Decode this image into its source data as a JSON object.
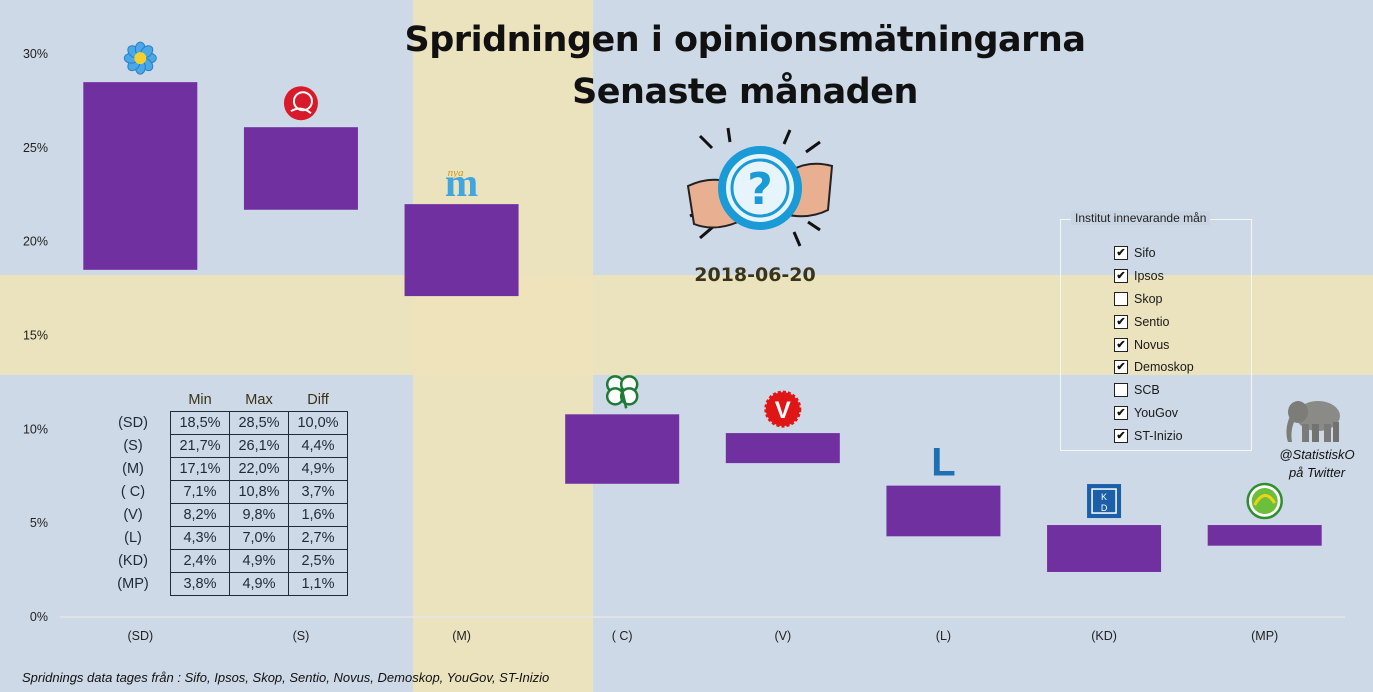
{
  "title_line1": "Spridningen i opinionsmätningarna",
  "title_line2": "Senaste månaden",
  "date": "2018-06-20",
  "colors": {
    "bar": "#7030a0",
    "flag_blue": "#c5d3e3",
    "flag_yellow": "#efe3b2"
  },
  "chart_data": {
    "type": "bar",
    "subtype": "floating-range",
    "categories": [
      "(SD)",
      "(S)",
      "(M)",
      "( C)",
      "(V)",
      "(L)",
      "(KD)",
      "(MP)"
    ],
    "min": [
      18.5,
      21.7,
      17.1,
      7.1,
      8.2,
      4.3,
      2.4,
      3.8
    ],
    "max": [
      28.5,
      26.1,
      22.0,
      10.8,
      9.8,
      7.0,
      4.9,
      4.9
    ],
    "ylim": [
      0,
      30
    ],
    "yticks": [
      "0%",
      "5%",
      "10%",
      "15%",
      "20%",
      "25%",
      "30%"
    ],
    "grid": false
  },
  "table": {
    "headers": [
      "Min",
      "Max",
      "Diff"
    ],
    "rows": [
      {
        "party": "(SD)",
        "min": "18,5%",
        "max": "28,5%",
        "diff": "10,0%"
      },
      {
        "party": "(S)",
        "min": "21,7%",
        "max": "26,1%",
        "diff": "4,4%"
      },
      {
        "party": "(M)",
        "min": "17,1%",
        "max": "22,0%",
        "diff": "4,9%"
      },
      {
        "party": "( C)",
        "min": "7,1%",
        "max": "10,8%",
        "diff": "3,7%"
      },
      {
        "party": "(V)",
        "min": "8,2%",
        "max": "9,8%",
        "diff": "1,6%"
      },
      {
        "party": "(L)",
        "min": "4,3%",
        "max": "7,0%",
        "diff": "2,7%"
      },
      {
        "party": "(KD)",
        "min": "2,4%",
        "max": "4,9%",
        "diff": "2,5%"
      },
      {
        "party": "(MP)",
        "min": "3,8%",
        "max": "4,9%",
        "diff": "1,1%"
      }
    ]
  },
  "legend": {
    "title": "Institut innevarande mån",
    "items": [
      {
        "label": "Sifo",
        "checked": true
      },
      {
        "label": "Ipsos",
        "checked": true
      },
      {
        "label": "Skop",
        "checked": false
      },
      {
        "label": "Sentio",
        "checked": true
      },
      {
        "label": "Novus",
        "checked": true
      },
      {
        "label": "Demoskop",
        "checked": true
      },
      {
        "label": "SCB",
        "checked": false
      },
      {
        "label": "YouGov",
        "checked": true
      },
      {
        "label": "ST-Inizio",
        "checked": true
      }
    ]
  },
  "party_logos": [
    "flower-icon",
    "rose-icon",
    "nya-m-icon",
    "clover-icon",
    "v-icon",
    "l-icon",
    "kd-icon",
    "mp-icon"
  ],
  "logo_text": {
    "m_small": "nya",
    "m_big": "m",
    "v": "V",
    "l": "L",
    "kd_top": "K",
    "kd_bottom": "D"
  },
  "twitter_line1": "@StatistiskO",
  "twitter_line2": "på Twitter",
  "footer": "Spridnings data tages från : Sifo, Ipsos, Skop, Sentio, Novus, Demoskop, YouGov, ST-Inizio"
}
